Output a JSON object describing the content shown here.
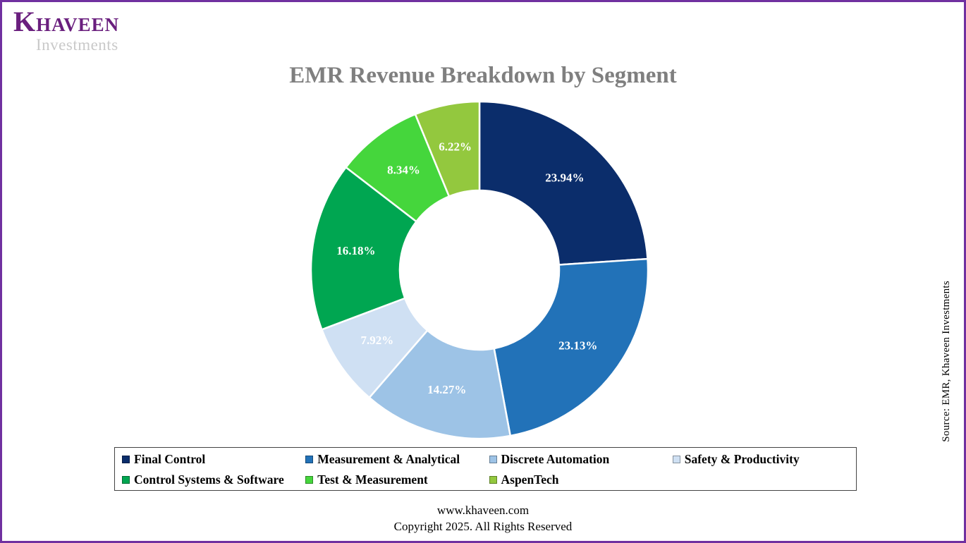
{
  "brand": {
    "name": "KHAVEEN",
    "subtitle": "Investments"
  },
  "chart_title": "EMR Revenue Breakdown by Segment",
  "source_note": "Source: EMR, Khaveen Investments",
  "footer": {
    "website": "www.khaveen.com",
    "copyright": "Copyright 2025. All Rights Reserved"
  },
  "chart_data": {
    "type": "pie",
    "subtype": "donut",
    "title": "EMR Revenue Breakdown by Segment",
    "unit": "%",
    "start_angle_deg": 0,
    "direction": "clockwise",
    "legend_position": "bottom",
    "label_color": "#ffffff",
    "segments": [
      {
        "label": "Final Control",
        "value": 23.94,
        "display": "23.94%",
        "color": "#0b2d6b"
      },
      {
        "label": "Measurement & Analytical",
        "value": 23.13,
        "display": "23.13%",
        "color": "#2272b8"
      },
      {
        "label": "Discrete Automation",
        "value": 14.27,
        "display": "14.27%",
        "color": "#9dc3e6"
      },
      {
        "label": "Safety & Productivity",
        "value": 7.92,
        "display": "7.92%",
        "color": "#cfe0f3"
      },
      {
        "label": "Control Systems & Software",
        "value": 16.18,
        "display": "16.18%",
        "color": "#00a651"
      },
      {
        "label": "Test & Measurement",
        "value": 8.34,
        "display": "8.34%",
        "color": "#45d63c"
      },
      {
        "label": "AspenTech",
        "value": 6.22,
        "display": "6.22%",
        "color": "#93c83e"
      }
    ]
  }
}
